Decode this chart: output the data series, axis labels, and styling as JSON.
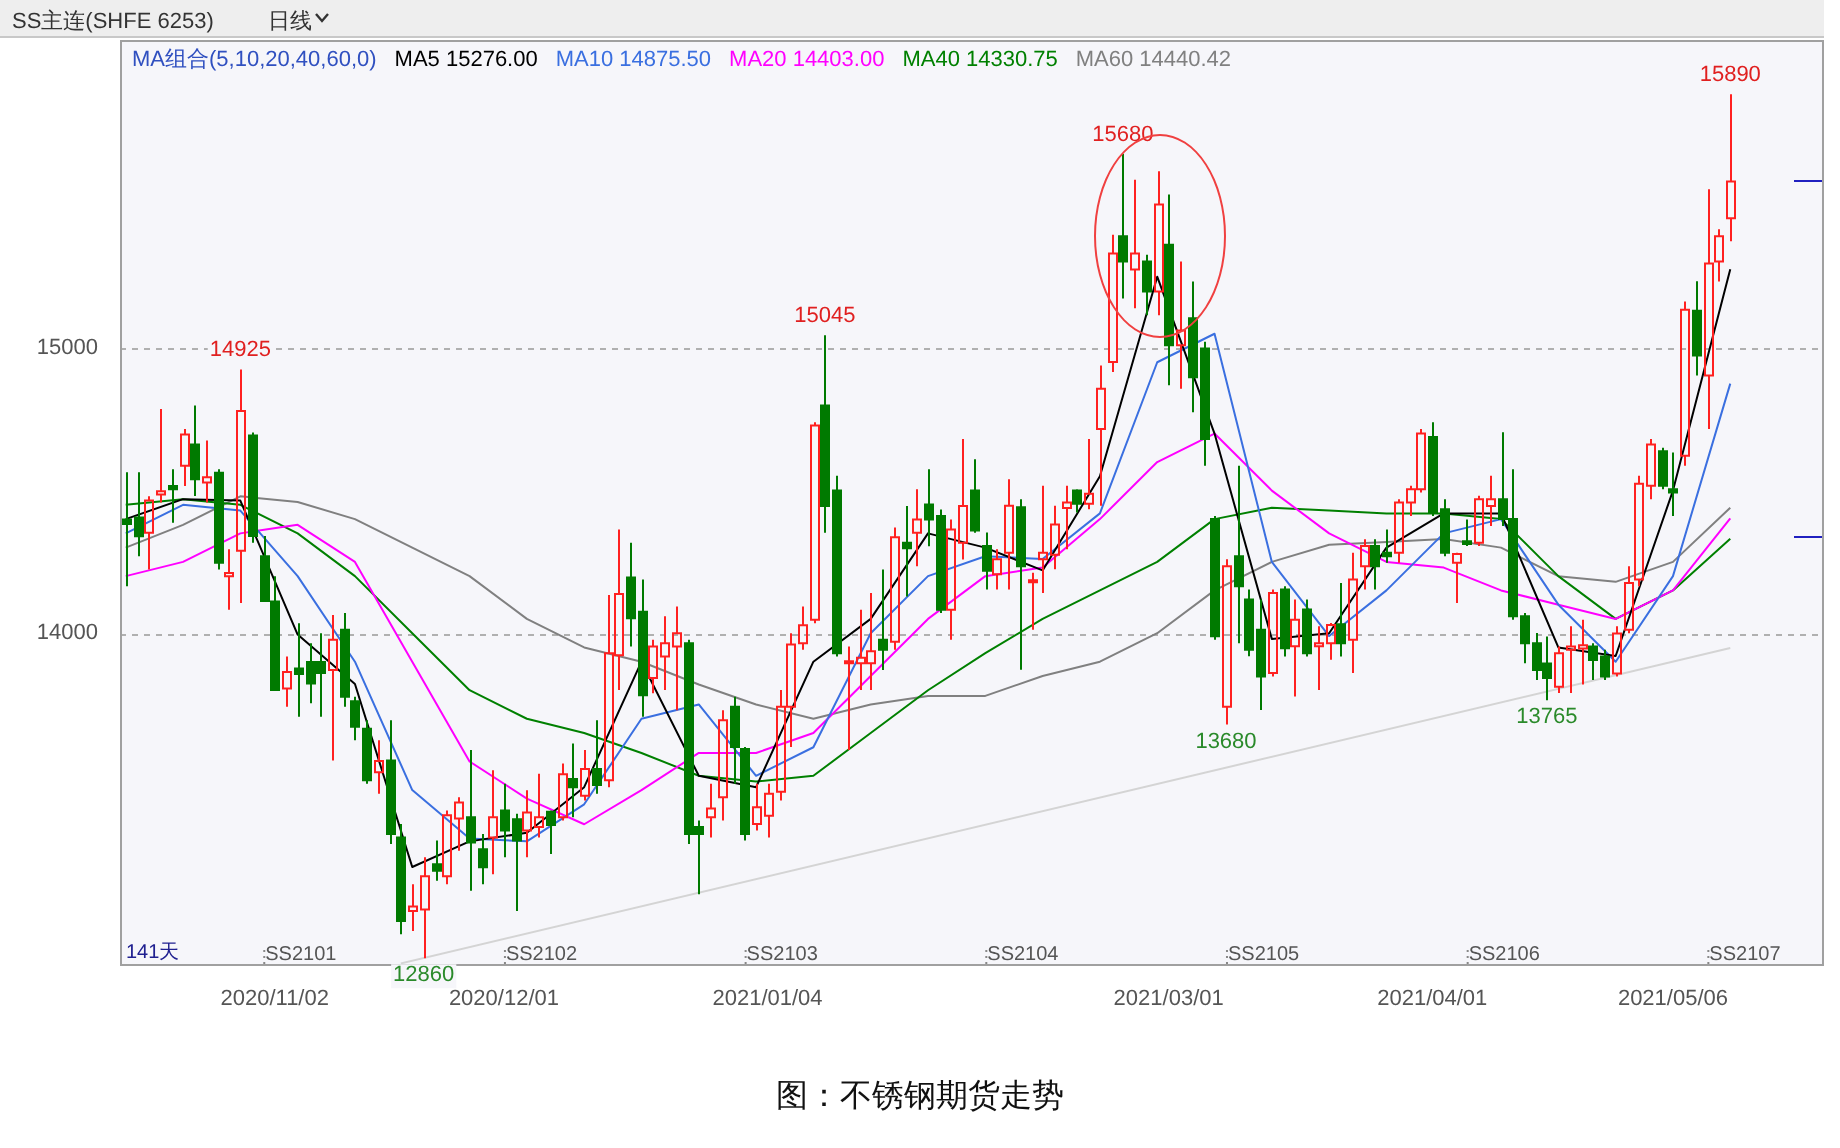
{
  "chart_data": {
    "type": "candlestick",
    "title": "SS主连(SHFE 6253)",
    "subtitle": "日线",
    "legend_title": "MA组合(5,10,20,40,60,0)",
    "legend": "top left",
    "grid": "y",
    "ylim": [
      12840,
      16080
    ],
    "yticks": [
      14000,
      15000
    ],
    "categories": [
      null,
      null,
      null,
      null,
      null,
      null,
      null,
      null,
      null,
      null,
      null,
      null,
      null,
      "2020/11/02",
      null,
      null,
      null,
      null,
      null,
      null,
      null,
      null,
      null,
      null,
      null,
      null,
      null,
      null,
      null,
      null,
      null,
      null,
      null,
      "2020/12/01",
      null,
      null,
      null,
      null,
      null,
      null,
      null,
      null,
      null,
      null,
      null,
      null,
      null,
      null,
      null,
      null,
      null,
      null,
      null,
      null,
      null,
      null,
      "2021/01/04",
      null,
      null,
      null,
      null,
      null,
      null,
      null,
      null,
      null,
      null,
      null,
      null,
      null,
      null,
      null,
      null,
      null,
      null,
      null,
      null,
      null,
      null,
      null,
      null,
      null,
      null,
      null,
      null,
      null,
      null,
      null,
      null,
      null,
      null,
      "2021/03/01",
      null,
      null,
      null,
      null,
      null,
      null,
      null,
      null,
      null,
      null,
      null,
      null,
      null,
      null,
      null,
      null,
      null,
      null,
      null,
      null,
      null,
      null,
      "2021/04/01",
      null,
      null,
      null,
      null,
      null,
      null,
      null,
      null,
      null,
      null,
      null,
      null,
      null,
      null,
      null,
      null,
      null,
      null,
      null,
      null,
      "2021/05/06",
      null,
      null,
      null,
      null,
      null
    ],
    "ohlc": [
      [
        14399,
        14564,
        14165,
        14383
      ],
      [
        14406,
        14564,
        14270,
        14340
      ],
      [
        14352,
        14480,
        14223,
        14465
      ],
      [
        14486,
        14786,
        14458,
        14498
      ],
      [
        14516,
        14575,
        14387,
        14505
      ],
      [
        14587,
        14716,
        14516,
        14697
      ],
      [
        14662,
        14798,
        14481,
        14540
      ],
      [
        14528,
        14676,
        14458,
        14547
      ],
      [
        14563,
        14575,
        14223,
        14247
      ],
      [
        14200,
        14294,
        14082,
        14211
      ],
      [
        14289,
        14925,
        14106,
        14779
      ],
      [
        14693,
        14704,
        14317,
        14341
      ],
      [
        14270,
        14341,
        14113,
        14113
      ],
      [
        14111,
        14200,
        13801,
        13801
      ],
      [
        13806,
        13918,
        13742,
        13864
      ],
      [
        13876,
        14035,
        13707,
        13857
      ],
      [
        13899,
        13965,
        13754,
        13824
      ],
      [
        13899,
        14000,
        13707,
        13860
      ],
      [
        13871,
        14064,
        13554,
        13977
      ],
      [
        14012,
        14071,
        13742,
        13777
      ],
      [
        13761,
        13777,
        13625,
        13672
      ],
      [
        13665,
        13695,
        13472,
        13484
      ],
      [
        13512,
        13625,
        13437,
        13552
      ],
      [
        13554,
        13695,
        13261,
        13296
      ],
      [
        13284,
        13331,
        12944,
        12991
      ],
      [
        13026,
        13120,
        12956,
        13042
      ],
      [
        13031,
        13214,
        12860,
        13148
      ],
      [
        13190,
        13273,
        13132,
        13167
      ],
      [
        13148,
        13378,
        13120,
        13362
      ],
      [
        13350,
        13425,
        13237,
        13406
      ],
      [
        13355,
        13590,
        13097,
        13266
      ],
      [
        13242,
        13296,
        13120,
        13179
      ],
      [
        13284,
        13519,
        13155,
        13355
      ],
      [
        13378,
        13472,
        13214,
        13308
      ],
      [
        13348,
        13367,
        13026,
        13273
      ],
      [
        13308,
        13449,
        13214,
        13371
      ],
      [
        13320,
        13507,
        13284,
        13355
      ],
      [
        13374,
        13378,
        13226,
        13327
      ],
      [
        13355,
        13543,
        13343,
        13505
      ],
      [
        13489,
        13613,
        13355,
        13460
      ],
      [
        13430,
        13590,
        13413,
        13524
      ],
      [
        13524,
        13695,
        13437,
        13468
      ],
      [
        13484,
        14134,
        13460,
        13930
      ],
      [
        13923,
        14364,
        13801,
        14137
      ],
      [
        14195,
        14317,
        13953,
        14052
      ],
      [
        14075,
        14188,
        13707,
        13782
      ],
      [
        13843,
        13977,
        13789,
        13953
      ],
      [
        13918,
        14059,
        13801,
        13965
      ],
      [
        13953,
        14094,
        13730,
        14000
      ],
      [
        13965,
        13977,
        13261,
        13296
      ],
      [
        13320,
        13343,
        13085,
        13296
      ],
      [
        13355,
        13472,
        13284,
        13385
      ],
      [
        13425,
        13730,
        13343,
        13695
      ],
      [
        13742,
        13777,
        13472,
        13601
      ],
      [
        13594,
        13601,
        13273,
        13296
      ],
      [
        13331,
        13472,
        13308,
        13390
      ],
      [
        13360,
        13472,
        13284,
        13437
      ],
      [
        13444,
        13801,
        13413,
        13742
      ],
      [
        13742,
        14000,
        13601,
        13960
      ],
      [
        13965,
        14094,
        13942,
        14028
      ],
      [
        14047,
        14740,
        14035,
        14728
      ],
      [
        14798,
        15045,
        14352,
        14446
      ],
      [
        14500,
        14552,
        13918,
        13930
      ],
      [
        13895,
        13953,
        13590,
        13902
      ],
      [
        13895,
        14082,
        13801,
        13914
      ],
      [
        13895,
        14141,
        13801,
        13937
      ],
      [
        13977,
        14223,
        13871,
        13942
      ],
      [
        13970,
        14371,
        13942,
        14336
      ],
      [
        14317,
        14446,
        14129,
        14298
      ],
      [
        14352,
        14505,
        14235,
        14399
      ],
      [
        14451,
        14575,
        14305,
        14399
      ],
      [
        14411,
        14434,
        14071,
        14082
      ],
      [
        14082,
        14399,
        13977,
        14364
      ],
      [
        14317,
        14681,
        14258,
        14446
      ],
      [
        14500,
        14610,
        14352,
        14360
      ],
      [
        14306,
        14353,
        14153,
        14219
      ],
      [
        14207,
        14294,
        14153,
        14259
      ],
      [
        14282,
        14540,
        14153,
        14447
      ],
      [
        14442,
        14470,
        13872,
        14235
      ],
      [
        14179,
        14212,
        14012,
        14186
      ],
      [
        14259,
        14517,
        14141,
        14282
      ],
      [
        14275,
        14447,
        14224,
        14381
      ],
      [
        14439,
        14517,
        14294,
        14458
      ],
      [
        14500,
        14505,
        14423,
        14454
      ],
      [
        14454,
        14681,
        14435,
        14489
      ],
      [
        14716,
        14939,
        14447,
        14857
      ],
      [
        14951,
        15397,
        14916,
        15331
      ],
      [
        15392,
        15680,
        15174,
        15303
      ],
      [
        15275,
        15590,
        15139,
        15331
      ],
      [
        15303,
        15327,
        15115,
        15198
      ],
      [
        15198,
        15620,
        15115,
        15503
      ],
      [
        15362,
        15538,
        14869,
        15010
      ],
      [
        15010,
        15303,
        14857,
        15061
      ],
      [
        15104,
        15233,
        14775,
        14897
      ],
      [
        14998,
        15022,
        14587,
        14681
      ],
      [
        14400,
        14411,
        13977,
        13989
      ],
      [
        13742,
        14259,
        13680,
        14235
      ],
      [
        14270,
        14587,
        13965,
        14165
      ],
      [
        14118,
        14153,
        13919,
        13942
      ],
      [
        14012,
        14118,
        13731,
        13848
      ],
      [
        13860,
        14153,
        13848,
        14141
      ],
      [
        14153,
        14165,
        13918,
        13947
      ],
      [
        13954,
        14118,
        13778,
        14047
      ],
      [
        14083,
        14118,
        13918,
        13930
      ],
      [
        13954,
        14024,
        13801,
        13965
      ],
      [
        13965,
        14036,
        13907,
        14029
      ],
      [
        14031,
        14176,
        13918,
        13965
      ],
      [
        13977,
        14282,
        13860,
        14188
      ],
      [
        14235,
        14329,
        14153,
        14306
      ],
      [
        14306,
        14329,
        14153,
        14235
      ],
      [
        14282,
        14364,
        14247,
        14270
      ],
      [
        14282,
        14470,
        14247,
        14458
      ],
      [
        14458,
        14517,
        14411,
        14505
      ],
      [
        14505,
        14716,
        14493,
        14700
      ],
      [
        14688,
        14740,
        14411,
        14423
      ],
      [
        14435,
        14470,
        14270,
        14282
      ],
      [
        14247,
        14282,
        14106,
        14278
      ],
      [
        14322,
        14399,
        14306,
        14313
      ],
      [
        14317,
        14482,
        14306,
        14470
      ],
      [
        14446,
        14552,
        14376,
        14470
      ],
      [
        14470,
        14705,
        14376,
        14400
      ],
      [
        14400,
        14575,
        14047,
        14059
      ],
      [
        14059,
        14071,
        13895,
        13965
      ],
      [
        13965,
        14001,
        13836,
        13871
      ],
      [
        13894,
        13988,
        13765,
        13843
      ],
      [
        13812,
        13953,
        13790,
        13930
      ],
      [
        13942,
        14024,
        13790,
        13953
      ],
      [
        13946,
        14047,
        13820,
        13958
      ],
      [
        13953,
        13965,
        13836,
        13906
      ],
      [
        13918,
        13942,
        13836,
        13848
      ],
      [
        13859,
        14024,
        13848,
        13999
      ],
      [
        14012,
        14235,
        14000,
        14176
      ],
      [
        14188,
        14552,
        14165,
        14524
      ],
      [
        14517,
        14681,
        14470,
        14662
      ],
      [
        14638,
        14650,
        14505,
        14517
      ],
      [
        14505,
        14634,
        14411,
        14493
      ],
      [
        14622,
        15163,
        14587,
        15134
      ],
      [
        15131,
        15234,
        14904,
        14974
      ],
      [
        14904,
        15557,
        14716,
        15296
      ],
      [
        15303,
        15416,
        15233,
        15392
      ],
      [
        15455,
        15890,
        15374,
        15584
      ]
    ],
    "series": [
      {
        "type": "line",
        "name": "MA5 15276.00",
        "color": "#000000",
        "values": [
          14400,
          null,
          null,
          null,
          null,
          14470,
          null,
          null,
          null,
          null,
          14465,
          null,
          null,
          null,
          null,
          13995,
          null,
          null,
          null,
          null,
          13822,
          null,
          null,
          null,
          null,
          13180,
          null,
          null,
          null,
          null,
          13270,
          null,
          null,
          null,
          null,
          13300,
          null,
          null,
          null,
          null,
          13460,
          null,
          null,
          null,
          null,
          13900,
          null,
          null,
          null,
          null,
          13500,
          null,
          null,
          null,
          null,
          13460,
          null,
          null,
          null,
          null,
          13900,
          null,
          null,
          null,
          null,
          14050,
          null,
          null,
          null,
          null,
          14350,
          null,
          null,
          null,
          null,
          14300,
          null,
          null,
          null,
          null,
          14220,
          null,
          null,
          null,
          null,
          14550,
          null,
          null,
          null,
          null,
          15250,
          null,
          null,
          null,
          null,
          14700,
          null,
          null,
          null,
          null,
          13980,
          null,
          null,
          null,
          null,
          14000,
          null,
          null,
          null,
          null,
          14300,
          null,
          null,
          null,
          null,
          14420,
          null,
          null,
          null,
          null,
          14420,
          null,
          null,
          null,
          null,
          13950,
          null,
          null,
          null,
          null,
          13920,
          null,
          null,
          null,
          null,
          14500,
          null,
          null,
          null,
          null,
          15276
        ]
      },
      {
        "type": "line",
        "name": "MA10 14875.50",
        "color": "#3a6fe0",
        "values": [
          14350,
          null,
          null,
          null,
          null,
          14450,
          null,
          null,
          null,
          null,
          14430,
          null,
          null,
          null,
          null,
          14200,
          null,
          null,
          null,
          null,
          13900,
          null,
          null,
          null,
          null,
          13450,
          null,
          null,
          null,
          null,
          13280,
          null,
          null,
          null,
          null,
          13270,
          null,
          null,
          null,
          null,
          13400,
          null,
          null,
          null,
          null,
          13700,
          null,
          null,
          null,
          null,
          13750,
          null,
          null,
          null,
          null,
          13500,
          null,
          null,
          null,
          null,
          13600,
          null,
          null,
          null,
          null,
          14000,
          null,
          null,
          null,
          null,
          14200,
          null,
          null,
          null,
          null,
          14270,
          null,
          null,
          null,
          null,
          14260,
          null,
          null,
          null,
          null,
          14420,
          null,
          null,
          null,
          null,
          14950,
          null,
          null,
          null,
          null,
          15050,
          null,
          null,
          null,
          null,
          14250,
          null,
          null,
          null,
          null,
          13990,
          null,
          null,
          null,
          null,
          14150,
          null,
          null,
          null,
          null,
          14350,
          null,
          null,
          null,
          null,
          14400,
          null,
          null,
          null,
          null,
          14100,
          null,
          null,
          null,
          null,
          13900,
          null,
          null,
          null,
          null,
          14200,
          null,
          null,
          null,
          null,
          14875
        ]
      },
      {
        "type": "line",
        "name": "MA20 14403.00",
        "color": "#ff00ff",
        "values": [
          14200,
          null,
          null,
          null,
          null,
          14250,
          null,
          null,
          null,
          null,
          14350,
          null,
          null,
          null,
          null,
          14380,
          null,
          null,
          null,
          null,
          14250,
          null,
          null,
          null,
          null,
          13900,
          null,
          null,
          null,
          null,
          13550,
          null,
          null,
          null,
          null,
          13420,
          null,
          null,
          null,
          null,
          13330,
          null,
          null,
          null,
          null,
          13450,
          null,
          null,
          null,
          null,
          13580,
          null,
          null,
          null,
          null,
          13580,
          null,
          null,
          null,
          null,
          13650,
          null,
          null,
          null,
          null,
          13850,
          null,
          null,
          null,
          null,
          14050,
          null,
          null,
          null,
          null,
          14200,
          null,
          null,
          null,
          null,
          14230,
          null,
          null,
          null,
          null,
          14400,
          null,
          null,
          null,
          null,
          14600,
          null,
          null,
          null,
          null,
          14700,
          null,
          null,
          null,
          null,
          14500,
          null,
          null,
          null,
          null,
          14350,
          null,
          null,
          null,
          null,
          14250,
          null,
          null,
          null,
          null,
          14230,
          null,
          null,
          null,
          null,
          14150,
          null,
          null,
          null,
          null,
          14100,
          null,
          null,
          null,
          null,
          14050,
          null,
          null,
          null,
          null,
          14150,
          null,
          null,
          null,
          null,
          14403
        ]
      },
      {
        "type": "line",
        "name": "MA40 14330.75",
        "color": "#008000",
        "values": [
          14450,
          null,
          null,
          null,
          null,
          14470,
          null,
          null,
          null,
          null,
          14450,
          null,
          null,
          null,
          null,
          14350,
          null,
          null,
          null,
          null,
          14200,
          null,
          null,
          null,
          null,
          14000,
          null,
          null,
          null,
          null,
          13800,
          null,
          null,
          null,
          null,
          13700,
          null,
          null,
          null,
          null,
          13650,
          null,
          null,
          null,
          null,
          13580,
          null,
          null,
          null,
          null,
          13500,
          null,
          null,
          null,
          null,
          13480,
          null,
          null,
          null,
          null,
          13500,
          null,
          null,
          null,
          null,
          13650,
          null,
          null,
          null,
          null,
          13800,
          null,
          null,
          null,
          null,
          13930,
          null,
          null,
          null,
          null,
          14050,
          null,
          null,
          null,
          null,
          14150,
          null,
          null,
          null,
          null,
          14250,
          null,
          null,
          null,
          null,
          14400,
          null,
          null,
          null,
          null,
          14440,
          null,
          null,
          null,
          null,
          14430,
          null,
          null,
          null,
          null,
          14420,
          null,
          null,
          null,
          null,
          14420,
          null,
          null,
          null,
          null,
          14400,
          null,
          null,
          null,
          null,
          14200,
          null,
          null,
          null,
          null,
          14050,
          null,
          null,
          null,
          null,
          14150,
          null,
          null,
          null,
          null,
          14331
        ]
      },
      {
        "type": "line",
        "name": "MA60 14440.42",
        "color": "#808080",
        "values": [
          14300,
          null,
          null,
          null,
          null,
          14380,
          null,
          null,
          null,
          null,
          14480,
          null,
          null,
          null,
          null,
          14460,
          null,
          null,
          null,
          null,
          14400,
          null,
          null,
          null,
          null,
          14300,
          null,
          null,
          null,
          null,
          14200,
          null,
          null,
          null,
          null,
          14050,
          null,
          null,
          null,
          null,
          13950,
          null,
          null,
          null,
          null,
          13900,
          null,
          null,
          null,
          null,
          13820,
          null,
          null,
          null,
          null,
          13750,
          null,
          null,
          null,
          null,
          13700,
          null,
          null,
          null,
          null,
          13750,
          null,
          null,
          null,
          null,
          13780,
          null,
          null,
          null,
          null,
          13780,
          null,
          null,
          null,
          null,
          13850,
          null,
          null,
          null,
          null,
          13900,
          null,
          null,
          null,
          null,
          14000,
          null,
          null,
          null,
          null,
          14150,
          null,
          null,
          null,
          null,
          14250,
          null,
          null,
          null,
          null,
          14310,
          null,
          null,
          null,
          null,
          14320,
          null,
          null,
          null,
          null,
          14330,
          null,
          null,
          null,
          null,
          14300,
          null,
          null,
          null,
          null,
          14200,
          null,
          null,
          null,
          null,
          14180,
          null,
          null,
          null,
          null,
          14250,
          null,
          null,
          null,
          null,
          14440
        ]
      },
      {
        "type": "line",
        "color": "#d4d4d4",
        "values": [
          null,
          null,
          null,
          null,
          null,
          null,
          null,
          null,
          null,
          null,
          null,
          null,
          null,
          null,
          null,
          null,
          null,
          null,
          null,
          null,
          null,
          null,
          null,
          null,
          12842,
          null,
          null,
          null,
          null,
          null,
          null,
          null,
          null,
          null,
          null,
          null,
          null,
          null,
          null,
          null,
          null,
          null,
          null,
          null,
          null,
          null,
          null,
          null,
          null,
          null,
          null,
          null,
          null,
          null,
          null,
          null,
          null,
          null,
          null,
          null,
          null,
          null,
          null,
          null,
          null,
          null,
          null,
          null,
          null,
          null,
          null,
          null,
          null,
          null,
          null,
          null,
          null,
          null,
          null,
          null,
          null,
          null,
          null,
          null,
          null,
          null,
          null,
          null,
          null,
          null,
          null,
          null,
          null,
          null,
          null,
          null,
          null,
          null,
          null,
          null,
          null,
          null,
          null,
          null,
          null,
          null,
          null,
          null,
          null,
          null,
          null,
          null,
          null,
          null,
          null,
          null,
          null,
          null,
          null,
          null,
          null,
          null,
          null,
          null,
          null,
          null,
          null,
          null,
          null,
          null,
          null,
          null,
          null,
          null,
          null,
          null,
          null,
          null,
          null,
          null,
          13948
        ]
      }
    ],
    "annotations": [
      "141天",
      "SS2101",
      "SS2102",
      "SS2103",
      "SS2104",
      "SS2105",
      "SS2106",
      "SS2107",
      {
        "text": "14925",
        "y": 14925
      },
      {
        "text": "15045",
        "y": 15045
      },
      {
        "text": "15680",
        "y": 15680
      },
      {
        "text": "15890",
        "y": 15890
      },
      {
        "text": "12860",
        "y": 12860
      },
      {
        "text": "13680",
        "y": 13680
      },
      {
        "text": "13765",
        "y": 13765
      },
      "图：不锈钢期货走势"
    ]
  }
}
